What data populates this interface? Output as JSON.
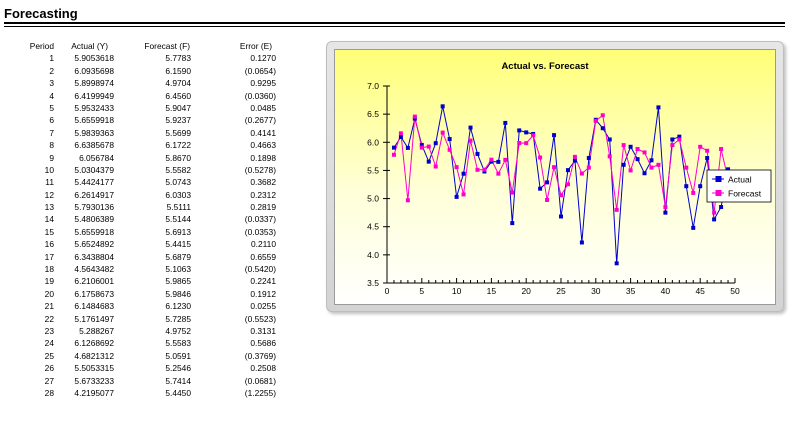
{
  "page": {
    "title": "Forecasting"
  },
  "table": {
    "headers": {
      "period": "Period",
      "actual": "Actual (Y)",
      "forecast": "Forecast (F)",
      "error": "Error (E)"
    },
    "rows": [
      {
        "period": "1",
        "actual": "5.9053618",
        "forecast": "5.7783",
        "error": "0.1270"
      },
      {
        "period": "2",
        "actual": "6.0935698",
        "forecast": "6.1590",
        "error": "(0.0654)"
      },
      {
        "period": "3",
        "actual": "5.8998974",
        "forecast": "4.9704",
        "error": "0.9295"
      },
      {
        "period": "4",
        "actual": "6.4199949",
        "forecast": "6.4560",
        "error": "(0.0360)"
      },
      {
        "period": "5",
        "actual": "5.9532433",
        "forecast": "5.9047",
        "error": "0.0485"
      },
      {
        "period": "6",
        "actual": "5.6559918",
        "forecast": "5.9237",
        "error": "(0.2677)"
      },
      {
        "period": "7",
        "actual": "5.9839363",
        "forecast": "5.5699",
        "error": "0.4141"
      },
      {
        "period": "8",
        "actual": "6.6385678",
        "forecast": "6.1722",
        "error": "0.4663"
      },
      {
        "period": "9",
        "actual": "6.056784",
        "forecast": "5.8670",
        "error": "0.1898"
      },
      {
        "period": "10",
        "actual": "5.0304379",
        "forecast": "5.5582",
        "error": "(0.5278)"
      },
      {
        "period": "11",
        "actual": "5.4424177",
        "forecast": "5.0743",
        "error": "0.3682"
      },
      {
        "period": "12",
        "actual": "6.2614917",
        "forecast": "6.0303",
        "error": "0.2312"
      },
      {
        "period": "13",
        "actual": "5.7930136",
        "forecast": "5.5111",
        "error": "0.2819"
      },
      {
        "period": "14",
        "actual": "5.4806389",
        "forecast": "5.5144",
        "error": "(0.0337)"
      },
      {
        "period": "15",
        "actual": "5.6559918",
        "forecast": "5.6913",
        "error": "(0.0353)"
      },
      {
        "period": "16",
        "actual": "5.6524892",
        "forecast": "5.4415",
        "error": "0.2110"
      },
      {
        "period": "17",
        "actual": "6.3438804",
        "forecast": "5.6879",
        "error": "0.6559"
      },
      {
        "period": "18",
        "actual": "4.5643482",
        "forecast": "5.1063",
        "error": "(0.5420)"
      },
      {
        "period": "19",
        "actual": "6.2106001",
        "forecast": "5.9865",
        "error": "0.2241"
      },
      {
        "period": "20",
        "actual": "6.1758673",
        "forecast": "5.9846",
        "error": "0.1912"
      },
      {
        "period": "21",
        "actual": "6.1484683",
        "forecast": "6.1230",
        "error": "0.0255"
      },
      {
        "period": "22",
        "actual": "5.1761497",
        "forecast": "5.7285",
        "error": "(0.5523)"
      },
      {
        "period": "23",
        "actual": "5.288267",
        "forecast": "4.9752",
        "error": "0.3131"
      },
      {
        "period": "24",
        "actual": "6.1268692",
        "forecast": "5.5583",
        "error": "0.5686"
      },
      {
        "period": "25",
        "actual": "4.6821312",
        "forecast": "5.0591",
        "error": "(0.3769)"
      },
      {
        "period": "26",
        "actual": "5.5053315",
        "forecast": "5.2546",
        "error": "0.2508"
      },
      {
        "period": "27",
        "actual": "5.6733233",
        "forecast": "5.7414",
        "error": "(0.0681)"
      },
      {
        "period": "28",
        "actual": "4.2195077",
        "forecast": "5.4450",
        "error": "(1.2255)"
      }
    ]
  },
  "chart_data": {
    "type": "line",
    "title": "Actual vs. Forecast",
    "xlabel": "",
    "ylabel": "",
    "xlim": [
      0,
      50
    ],
    "ylim": [
      3.5,
      7.0
    ],
    "xticks": [
      0,
      5,
      10,
      15,
      20,
      25,
      30,
      35,
      40,
      45,
      50
    ],
    "yticks": [
      "3.5",
      "4.0",
      "4.5",
      "5.0",
      "5.5",
      "6.0",
      "6.5",
      "7.0"
    ],
    "grid": false,
    "legend_position": "right",
    "series": [
      {
        "name": "Actual",
        "color": "#0000cc",
        "values": [
          5.905,
          6.094,
          5.9,
          6.42,
          5.953,
          5.656,
          5.984,
          6.639,
          6.057,
          5.03,
          5.442,
          6.261,
          5.793,
          5.481,
          5.656,
          5.652,
          6.344,
          4.564,
          6.211,
          6.176,
          6.148,
          5.176,
          5.288,
          6.127,
          4.682,
          5.505,
          5.673,
          4.22,
          5.72,
          6.4,
          6.25,
          6.05,
          3.85,
          5.6,
          5.92,
          5.7,
          5.45,
          5.68,
          6.62,
          4.75,
          6.05,
          6.1,
          5.22,
          4.48,
          5.22,
          5.72,
          4.63,
          4.85,
          5.52
        ]
      },
      {
        "name": "Forecast",
        "color": "#ff00cc",
        "values": [
          5.778,
          6.159,
          4.97,
          6.456,
          5.905,
          5.924,
          5.57,
          6.172,
          5.867,
          5.558,
          5.074,
          6.03,
          5.511,
          5.514,
          5.691,
          5.442,
          5.688,
          5.106,
          5.987,
          5.985,
          6.123,
          5.729,
          4.975,
          5.558,
          5.059,
          5.255,
          5.741,
          5.445,
          5.55,
          6.38,
          6.48,
          5.75,
          4.8,
          5.95,
          5.5,
          5.88,
          5.82,
          5.55,
          5.6,
          4.85,
          5.95,
          6.05,
          5.55,
          5.1,
          5.92,
          5.85,
          4.75,
          5.88,
          5.35
        ]
      }
    ]
  }
}
